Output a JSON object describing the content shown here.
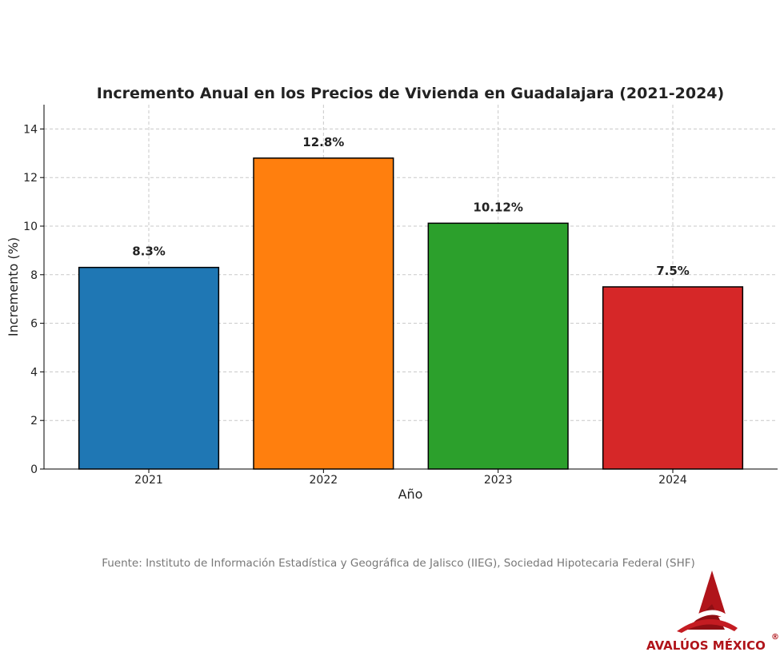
{
  "chart_data": {
    "type": "bar",
    "title": "Incremento Anual en los Precios de Vivienda en Guadalajara (2021-2024)",
    "xlabel": "Año",
    "ylabel": "Incremento (%)",
    "categories": [
      "2021",
      "2022",
      "2023",
      "2024"
    ],
    "values": [
      8.3,
      12.8,
      10.12,
      7.5
    ],
    "data_labels": [
      "8.3%",
      "12.8%",
      "10.12%",
      "7.5%"
    ],
    "colors": [
      "#1f77b4",
      "#ff7f0e",
      "#2ca02c",
      "#d62728"
    ],
    "ylim": [
      0,
      15
    ],
    "yticks": [
      0,
      2,
      4,
      6,
      8,
      10,
      12,
      14
    ],
    "grid": true
  },
  "source_note": "Fuente: Instituto de Información Estadística y Geográfica de Jalisco (IIEG), Sociedad Hipotecaria Federal (SHF)",
  "logo": {
    "text": "AVALÚOS MÉXICO",
    "registered_mark": "®",
    "color": "#b0141a"
  }
}
